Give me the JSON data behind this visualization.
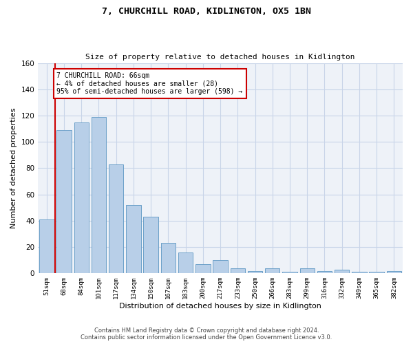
{
  "title": "7, CHURCHILL ROAD, KIDLINGTON, OX5 1BN",
  "subtitle": "Size of property relative to detached houses in Kidlington",
  "xlabel": "Distribution of detached houses by size in Kidlington",
  "ylabel": "Number of detached properties",
  "bar_color": "#b8cfe8",
  "bar_edge_color": "#6a9fc8",
  "categories": [
    "51sqm",
    "68sqm",
    "84sqm",
    "101sqm",
    "117sqm",
    "134sqm",
    "150sqm",
    "167sqm",
    "183sqm",
    "200sqm",
    "217sqm",
    "233sqm",
    "250sqm",
    "266sqm",
    "283sqm",
    "299sqm",
    "316sqm",
    "332sqm",
    "349sqm",
    "365sqm",
    "382sqm"
  ],
  "values": [
    41,
    109,
    115,
    119,
    83,
    52,
    43,
    23,
    16,
    7,
    10,
    4,
    2,
    4,
    1,
    4,
    2,
    3,
    1,
    1,
    2
  ],
  "ylim": [
    0,
    160
  ],
  "yticks": [
    0,
    20,
    40,
    60,
    80,
    100,
    120,
    140,
    160
  ],
  "annotation_box_text": "7 CHURCHILL ROAD: 66sqm\n← 4% of detached houses are smaller (28)\n95% of semi-detached houses are larger (598) →",
  "footnote1": "Contains HM Land Registry data © Crown copyright and database right 2024.",
  "footnote2": "Contains public sector information licensed under the Open Government Licence v3.0.",
  "grid_color": "#c8d4e8",
  "background_color": "#eef2f8",
  "red_line_color": "#cc0000",
  "annotation_box_edge_color": "#cc0000"
}
